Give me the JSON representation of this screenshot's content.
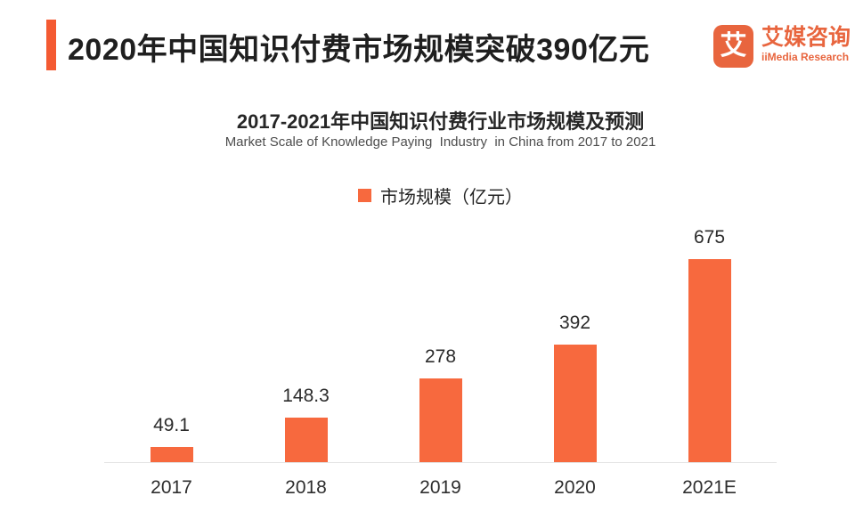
{
  "header": {
    "title": "2020年中国知识付费市场规模突破390亿元",
    "logo": {
      "icon_char": "艾",
      "name_cn": "艾媒咨询",
      "name_en": "iiMedia Research"
    }
  },
  "chart": {
    "title": "2017-2021年中国知识付费行业市场规模及预测",
    "subtitle": "Market Scale of Knowledge Paying  Industry  in China from 2017 to 2021",
    "legend_label": "市场规模（亿元）"
  },
  "chart_data": {
    "type": "bar",
    "categories": [
      "2017",
      "2018",
      "2019",
      "2020",
      "2021E"
    ],
    "values": [
      49.1,
      148.3,
      278,
      392,
      675
    ],
    "title": "2017-2021年中国知识付费行业市场规模及预测",
    "subtitle": "Market Scale of Knowledge Paying Industry in China from 2017 to 2021",
    "legend": [
      "市场规模（亿元）"
    ],
    "legend_position": "top-center",
    "xlabel": "",
    "ylabel": "",
    "ylim": [
      0,
      700
    ],
    "grid": false,
    "value_labels": true,
    "bar_color": "#F7693E"
  },
  "colors": {
    "accent_bar": "#F45A32",
    "bar": "#F7693E",
    "logo": "#E8653E",
    "axis_line": "#E3E3E3",
    "title_text": "#1F1F1F",
    "subtitle_text": "#4D4D4D"
  }
}
